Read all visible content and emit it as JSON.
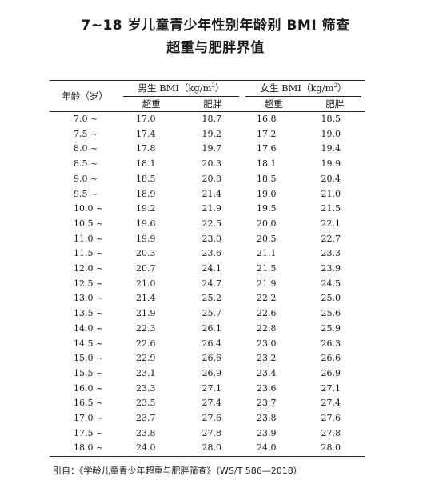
{
  "title_line1": "7~18 岁儿童青少年性别年龄别 BMI 筛查",
  "title_line2": "超重与肥胖界值",
  "header": {
    "age": "年龄（岁）",
    "male": "男生 BMI（kg/m",
    "female": "女生 BMI（kg/m",
    "unit_sup": "2",
    "unit_close": "）",
    "overweight": "超重",
    "obese": "肥胖"
  },
  "rows": [
    {
      "age": "7.0 ~",
      "m_ow": "17.0",
      "m_ob": "18.7",
      "f_ow": "16.8",
      "f_ob": "18.5"
    },
    {
      "age": "7.5 ~",
      "m_ow": "17.4",
      "m_ob": "19.2",
      "f_ow": "17.2",
      "f_ob": "19.0"
    },
    {
      "age": "8.0 ~",
      "m_ow": "17.8",
      "m_ob": "19.7",
      "f_ow": "17.6",
      "f_ob": "19.4"
    },
    {
      "age": "8.5 ~",
      "m_ow": "18.1",
      "m_ob": "20.3",
      "f_ow": "18.1",
      "f_ob": "19.9"
    },
    {
      "age": "9.0 ~",
      "m_ow": "18.5",
      "m_ob": "20.8",
      "f_ow": "18.5",
      "f_ob": "20.4"
    },
    {
      "age": "9.5 ~",
      "m_ow": "18.9",
      "m_ob": "21.4",
      "f_ow": "19.0",
      "f_ob": "21.0"
    },
    {
      "age": "10.0 ~",
      "m_ow": "19.2",
      "m_ob": "21.9",
      "f_ow": "19.5",
      "f_ob": "21.5"
    },
    {
      "age": "10.5 ~",
      "m_ow": "19.6",
      "m_ob": "22.5",
      "f_ow": "20.0",
      "f_ob": "22.1"
    },
    {
      "age": "11.0 ~",
      "m_ow": "19.9",
      "m_ob": "23.0",
      "f_ow": "20.5",
      "f_ob": "22.7"
    },
    {
      "age": "11.5 ~",
      "m_ow": "20.3",
      "m_ob": "23.6",
      "f_ow": "21.1",
      "f_ob": "23.3"
    },
    {
      "age": "12.0 ~",
      "m_ow": "20.7",
      "m_ob": "24.1",
      "f_ow": "21.5",
      "f_ob": "23.9"
    },
    {
      "age": "12.5 ~",
      "m_ow": "21.0",
      "m_ob": "24.7",
      "f_ow": "21.9",
      "f_ob": "24.5"
    },
    {
      "age": "13.0 ~",
      "m_ow": "21.4",
      "m_ob": "25.2",
      "f_ow": "22.2",
      "f_ob": "25.0"
    },
    {
      "age": "13.5 ~",
      "m_ow": "21.9",
      "m_ob": "25.7",
      "f_ow": "22.6",
      "f_ob": "25.6"
    },
    {
      "age": "14.0 ~",
      "m_ow": "22.3",
      "m_ob": "26.1",
      "f_ow": "22.8",
      "f_ob": "25.9"
    },
    {
      "age": "14.5 ~",
      "m_ow": "22.6",
      "m_ob": "26.4",
      "f_ow": "23.0",
      "f_ob": "26.3"
    },
    {
      "age": "15.0 ~",
      "m_ow": "22.9",
      "m_ob": "26.6",
      "f_ow": "23.2",
      "f_ob": "26.6"
    },
    {
      "age": "15.5 ~",
      "m_ow": "23.1",
      "m_ob": "26.9",
      "f_ow": "23.4",
      "f_ob": "26.9"
    },
    {
      "age": "16.0 ~",
      "m_ow": "23.3",
      "m_ob": "27.1",
      "f_ow": "23.6",
      "f_ob": "27.1"
    },
    {
      "age": "16.5 ~",
      "m_ow": "23.5",
      "m_ob": "27.4",
      "f_ow": "23.7",
      "f_ob": "27.4"
    },
    {
      "age": "17.0 ~",
      "m_ow": "23.7",
      "m_ob": "27.6",
      "f_ow": "23.8",
      "f_ob": "27.6"
    },
    {
      "age": "17.5 ~",
      "m_ow": "23.8",
      "m_ob": "27.8",
      "f_ow": "23.9",
      "f_ob": "27.8"
    },
    {
      "age": "18.0 ~",
      "m_ow": "24.0",
      "m_ob": "28.0",
      "f_ow": "24.0",
      "f_ob": "28.0"
    }
  ],
  "source": "引自：《学龄儿童青少年超重与肥胖筛查》（WS/T 586—2018）"
}
